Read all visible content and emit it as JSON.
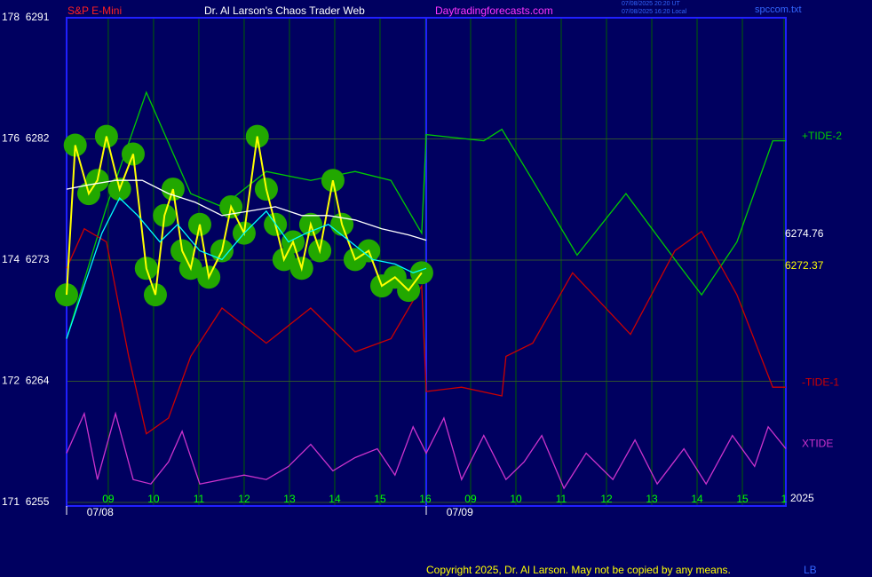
{
  "header": {
    "symbol": "S&P E-Mini",
    "title": "Dr. Al Larson's Chaos Trader Web",
    "site": "Daytradingforecasts.com",
    "time_ut": "07/08/2025 20:20 UT",
    "time_local": "07/08/2025 16:20 Local",
    "file": "spccom.txt"
  },
  "footer": {
    "copyright": "Copyright 2025, Dr. Al Larson. May not be copied by any means.",
    "initials": "LB"
  },
  "chart_data": {
    "type": "line",
    "xlim": [
      -0.92,
      14.96
    ],
    "ylim": [
      6255,
      6291
    ],
    "grid": true,
    "xticks": [
      {
        "value": 0,
        "label": "09"
      },
      {
        "value": 1,
        "label": "10"
      },
      {
        "value": 2,
        "label": "11"
      },
      {
        "value": 3,
        "label": "12"
      },
      {
        "value": 4,
        "label": "13"
      },
      {
        "value": 5,
        "label": "14"
      },
      {
        "value": 6,
        "label": "15"
      },
      {
        "value": 7,
        "label": "16"
      },
      {
        "value": 8,
        "label": "09"
      },
      {
        "value": 9,
        "label": "10"
      },
      {
        "value": 10,
        "label": "11"
      },
      {
        "value": 11,
        "label": "12"
      },
      {
        "value": 12,
        "label": "13"
      },
      {
        "value": 13,
        "label": "14"
      },
      {
        "value": 14,
        "label": "15"
      },
      {
        "value": 14.92,
        "label": "1"
      }
    ],
    "yticks": [
      {
        "value": 6255,
        "label": "171  6255"
      },
      {
        "value": 6264,
        "label": "172  6264"
      },
      {
        "value": 6273,
        "label": "174  6273"
      },
      {
        "value": 6282,
        "label": "176  6282"
      },
      {
        "value": 6291,
        "label": "178  6291"
      }
    ],
    "date_labels": [
      {
        "value": -0.18,
        "label": "07/08"
      },
      {
        "value": 7.76,
        "label": "07/09"
      }
    ],
    "year_label": "2025",
    "last_values": [
      {
        "label": "6274.76",
        "color": "#ffffff"
      },
      {
        "label": "6272.37",
        "color": "#ffff00"
      }
    ],
    "series": [
      {
        "name": "+TIDE-2",
        "color": "#00cc00",
        "x": [
          -0.92,
          -0.04,
          0.84,
          1.82,
          2.51,
          3.49,
          4.47,
          5.45,
          6.24,
          6.92,
          7.02,
          8.29,
          8.69,
          9.37,
          10.35,
          11.43,
          12.51,
          13.1,
          13.88,
          14.67,
          14.96
        ],
        "values": [
          6267.16,
          6276.96,
          6285.46,
          6277.94,
          6276.96,
          6279.58,
          6278.92,
          6279.58,
          6278.92,
          6275.0,
          6282.32,
          6281.86,
          6282.71,
          6278.92,
          6273.37,
          6277.94,
          6273.04,
          6270.42,
          6274.35,
          6281.86,
          6281.86
        ]
      },
      {
        "name": "-TIDE-1",
        "color": "#cc0000",
        "x": [
          -0.92,
          -0.53,
          -0.04,
          0.45,
          0.84,
          1.33,
          1.82,
          2.51,
          3.49,
          4.47,
          5.45,
          6.24,
          6.92,
          7.02,
          7.8,
          8.69,
          8.78,
          9.37,
          10.25,
          11.53,
          12.51,
          13.1,
          13.88,
          14.67,
          14.96
        ],
        "values": [
          6272.39,
          6275.33,
          6274.35,
          6265.85,
          6260.1,
          6261.27,
          6265.85,
          6269.44,
          6266.83,
          6269.44,
          6266.18,
          6267.16,
          6271.08,
          6263.24,
          6263.56,
          6262.91,
          6265.85,
          6266.83,
          6272.06,
          6267.48,
          6273.69,
          6275.13,
          6270.42,
          6263.56,
          6263.56
        ]
      },
      {
        "name": "XTIDE",
        "color": "#cc33cc",
        "x": [
          -0.92,
          -0.53,
          -0.24,
          0.16,
          0.55,
          0.94,
          1.33,
          1.63,
          2.02,
          2.51,
          3.0,
          3.49,
          3.98,
          4.47,
          4.96,
          5.45,
          5.94,
          6.33,
          6.73,
          7.02,
          7.41,
          7.8,
          8.29,
          8.78,
          9.18,
          9.57,
          10.06,
          10.55,
          11.14,
          11.63,
          12.12,
          12.71,
          13.2,
          13.78,
          14.27,
          14.57,
          14.96
        ],
        "values": [
          6258.66,
          6261.6,
          6256.7,
          6261.6,
          6256.7,
          6256.37,
          6258.01,
          6260.29,
          6256.37,
          6256.7,
          6257.03,
          6256.7,
          6257.68,
          6259.31,
          6257.35,
          6258.33,
          6258.99,
          6257.03,
          6260.62,
          6258.66,
          6261.27,
          6256.7,
          6259.97,
          6256.7,
          6258.01,
          6259.97,
          6256.05,
          6258.66,
          6256.7,
          6259.64,
          6256.37,
          6258.99,
          6256.37,
          6259.97,
          6257.68,
          6260.62,
          6258.99
        ]
      },
      {
        "color": "#ffff00",
        "highlight_color": "#22a800",
        "x": [
          -0.92,
          -0.73,
          -0.43,
          -0.24,
          -0.04,
          0.25,
          0.55,
          0.84,
          1.04,
          1.24,
          1.43,
          1.63,
          1.82,
          2.02,
          2.22,
          2.51,
          2.71,
          3.0,
          3.29,
          3.49,
          3.69,
          3.88,
          4.08,
          4.27,
          4.47,
          4.67,
          4.96,
          5.16,
          5.45,
          5.75,
          6.04,
          6.33,
          6.63,
          6.92
        ],
        "values": [
          6270.42,
          6281.54,
          6277.94,
          6278.92,
          6282.19,
          6278.27,
          6280.88,
          6272.39,
          6270.42,
          6276.31,
          6278.27,
          6273.69,
          6272.39,
          6275.65,
          6271.73,
          6273.69,
          6276.96,
          6275.0,
          6282.19,
          6278.27,
          6275.65,
          6273.04,
          6274.35,
          6272.39,
          6275.65,
          6273.69,
          6278.92,
          6275.65,
          6273.04,
          6273.69,
          6271.08,
          6271.73,
          6270.75,
          6272.06
        ]
      },
      {
        "color": "#ffffff",
        "x": [
          -0.92,
          -0.43,
          0.16,
          0.75,
          1.33,
          1.92,
          2.51,
          3.1,
          3.69,
          4.27,
          4.86,
          5.45,
          6.04,
          6.63,
          7.02
        ],
        "values": [
          6278.27,
          6278.59,
          6278.92,
          6278.92,
          6277.94,
          6277.29,
          6276.31,
          6276.63,
          6276.96,
          6276.31,
          6276.31,
          6275.98,
          6275.33,
          6274.87,
          6274.48
        ]
      },
      {
        "color": "#00ffff",
        "x": [
          -0.92,
          -0.53,
          -0.14,
          0.25,
          0.65,
          1.14,
          1.53,
          2.02,
          2.51,
          3.0,
          3.49,
          3.98,
          4.37,
          4.86,
          5.35,
          5.84,
          6.33,
          6.73,
          7.02
        ],
        "values": [
          6267.16,
          6271.08,
          6275.0,
          6277.61,
          6276.31,
          6274.35,
          6275.65,
          6273.69,
          6273.04,
          6275.0,
          6276.63,
          6274.35,
          6275.0,
          6275.65,
          6274.35,
          6273.04,
          6272.71,
          6272.06,
          6272.39
        ]
      }
    ]
  }
}
